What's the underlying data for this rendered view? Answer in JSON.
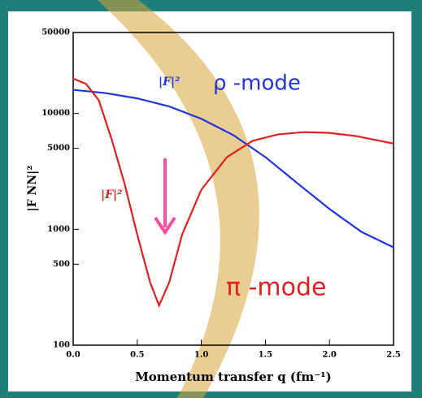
{
  "chart_data": {
    "type": "line",
    "y_scale": "log",
    "grid": false,
    "x_label": "Momentum transfer q (fm⁻¹)",
    "y_label": "|F NN|²",
    "xlim": [
      0,
      2.5
    ],
    "xticks": [
      {
        "value": 0,
        "label": "0.0"
      },
      0.5,
      {
        "value": 1,
        "label": "1.0"
      },
      1.5,
      {
        "value": 2,
        "label": "2.0"
      },
      2.5
    ],
    "ylim": [
      100,
      50000
    ],
    "yticks": [
      100,
      500,
      1000,
      5000,
      10000,
      50000
    ],
    "series": [
      {
        "name": "ρ -mode",
        "color": "#2233dd",
        "x": [
          0,
          0.25,
          0.5,
          0.75,
          1.0,
          1.25,
          1.5,
          1.75,
          2.0,
          2.25,
          2.5
        ],
        "values": [
          16000,
          15000,
          13500,
          11500,
          9000,
          6500,
          4200,
          2500,
          1500,
          950,
          700
        ]
      },
      {
        "name": "π -mode",
        "color": "#e02020",
        "x": [
          0,
          0.1,
          0.2,
          0.3,
          0.4,
          0.5,
          0.6,
          0.67,
          0.75,
          0.85,
          1.0,
          1.2,
          1.4,
          1.6,
          1.8,
          2.0,
          2.2,
          2.5
        ],
        "values": [
          20000,
          18000,
          13000,
          6000,
          2500,
          900,
          350,
          220,
          350,
          900,
          2200,
          4200,
          5800,
          6600,
          6900,
          6800,
          6400,
          5500
        ]
      }
    ],
    "annotations": [
      "|F|²",
      "|F|²"
    ]
  }
}
